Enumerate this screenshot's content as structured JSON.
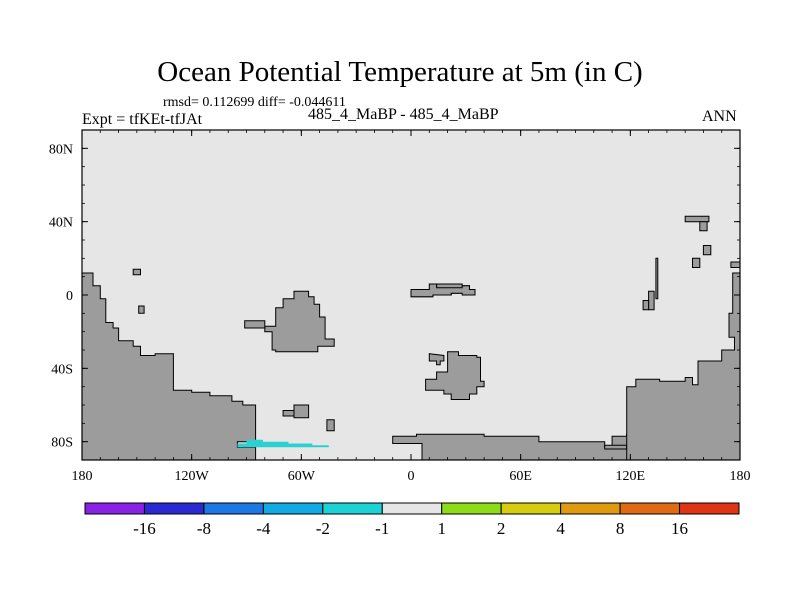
{
  "title": "Ocean Potential Temperature at 5m (in C)",
  "stats": "rmsd= 0.112699 diff= -0.044611",
  "experiment": "Expt = tfKEt-tfJAt",
  "subtitle": "485_4_MaBP - 485_4_MaBP",
  "season": "ANN",
  "map": {
    "projection": "cylindrical-equidistant",
    "lon_range": [
      180,
      540
    ],
    "lat_range": [
      -90,
      90
    ],
    "ocean_color": "#e6e6e6",
    "land_color": "#9c9c9c",
    "x_ticks": [
      {
        "lon": 180,
        "label": "180"
      },
      {
        "lon": 240,
        "label": "120W"
      },
      {
        "lon": 300,
        "label": "60W"
      },
      {
        "lon": 360,
        "label": "0"
      },
      {
        "lon": 420,
        "label": "60E"
      },
      {
        "lon": 480,
        "label": "120E"
      },
      {
        "lon": 540,
        "label": "180"
      }
    ],
    "y_ticks": [
      {
        "lat": 80,
        "label": "80N"
      },
      {
        "lat": 40,
        "label": "40N"
      },
      {
        "lat": 0,
        "label": "0"
      },
      {
        "lat": -40,
        "label": "40S"
      },
      {
        "lat": -80,
        "label": "80S"
      }
    ],
    "land": [
      [
        [
          180,
          12
        ],
        [
          186,
          12
        ],
        [
          186,
          5
        ],
        [
          190,
          5
        ],
        [
          190,
          -2
        ],
        [
          193,
          -2
        ],
        [
          193,
          -15
        ],
        [
          197,
          -15
        ],
        [
          197,
          -18
        ],
        [
          200,
          -18
        ],
        [
          200,
          -25
        ],
        [
          208,
          -25
        ],
        [
          208,
          -28
        ],
        [
          212,
          -28
        ],
        [
          212,
          -33
        ],
        [
          220,
          -33
        ],
        [
          220,
          -32
        ],
        [
          230,
          -32
        ],
        [
          230,
          -52
        ],
        [
          240,
          -52
        ],
        [
          240,
          -53
        ],
        [
          250,
          -53
        ],
        [
          250,
          -55
        ],
        [
          262,
          -55
        ],
        [
          262,
          -58
        ],
        [
          268,
          -58
        ],
        [
          268,
          -60
        ],
        [
          275,
          -60
        ],
        [
          275,
          -80
        ],
        [
          265,
          -80
        ],
        [
          265,
          -83
        ],
        [
          275,
          -83
        ],
        [
          275,
          -90
        ],
        [
          180,
          -90
        ]
      ],
      [
        [
          366,
          -90
        ],
        [
          366,
          -81
        ],
        [
          350,
          -81
        ],
        [
          350,
          -77
        ],
        [
          363,
          -77
        ],
        [
          363,
          -76
        ],
        [
          400,
          -76
        ],
        [
          400,
          -77
        ],
        [
          430,
          -77
        ],
        [
          430,
          -80
        ],
        [
          466,
          -80
        ],
        [
          466,
          -83
        ],
        [
          470,
          -83
        ],
        [
          470,
          -77
        ],
        [
          478,
          -77
        ],
        [
          478,
          -76
        ],
        [
          485,
          -76
        ],
        [
          485,
          -81
        ],
        [
          498,
          -81
        ],
        [
          498,
          -85
        ],
        [
          540,
          -85
        ],
        [
          540,
          -90
        ]
      ],
      [
        [
          466,
          -84
        ],
        [
          466,
          -82
        ],
        [
          478,
          -82
        ],
        [
          478,
          -84
        ]
      ],
      [
        [
          478,
          -80
        ],
        [
          478,
          -50
        ],
        [
          483,
          -50
        ],
        [
          483,
          -46
        ],
        [
          496,
          -46
        ],
        [
          496,
          -47
        ],
        [
          510,
          -47
        ],
        [
          510,
          -45
        ],
        [
          514,
          -45
        ],
        [
          514,
          -49
        ],
        [
          517,
          -49
        ],
        [
          517,
          -36
        ],
        [
          530,
          -36
        ],
        [
          530,
          -30
        ],
        [
          537,
          -30
        ],
        [
          537,
          -23
        ],
        [
          534,
          -23
        ],
        [
          534,
          -10
        ],
        [
          536,
          -10
        ],
        [
          536,
          12
        ],
        [
          540,
          12
        ],
        [
          540,
          -90
        ],
        [
          478,
          -90
        ]
      ],
      [
        [
          535,
          15
        ],
        [
          535,
          18
        ],
        [
          540,
          18
        ],
        [
          540,
          15
        ]
      ],
      [
        [
          510,
          40
        ],
        [
          510,
          43
        ],
        [
          523,
          43
        ],
        [
          523,
          40
        ]
      ],
      [
        [
          518,
          35
        ],
        [
          518,
          40
        ],
        [
          522,
          40
        ],
        [
          522,
          35
        ]
      ],
      [
        [
          520,
          22
        ],
        [
          520,
          27
        ],
        [
          524,
          27
        ],
        [
          524,
          22
        ]
      ],
      [
        [
          514,
          15
        ],
        [
          514,
          20
        ],
        [
          518,
          20
        ],
        [
          518,
          15
        ]
      ],
      [
        [
          494,
          20
        ],
        [
          494,
          -2
        ],
        [
          495,
          -2
        ],
        [
          495,
          20
        ]
      ],
      [
        [
          490,
          2
        ],
        [
          490,
          -8
        ],
        [
          493,
          -8
        ],
        [
          493,
          2
        ]
      ],
      [
        [
          487,
          -3
        ],
        [
          487,
          -8
        ],
        [
          490,
          -8
        ],
        [
          490,
          -3
        ]
      ],
      [
        [
          208,
          14
        ],
        [
          208,
          11
        ],
        [
          212,
          11
        ],
        [
          212,
          14
        ]
      ],
      [
        [
          211,
          -6
        ],
        [
          211,
          -10
        ],
        [
          214,
          -10
        ],
        [
          214,
          -6
        ]
      ],
      [
        [
          296,
          2
        ],
        [
          296,
          -2
        ],
        [
          290,
          -2
        ],
        [
          290,
          -7
        ],
        [
          286,
          -7
        ],
        [
          286,
          -17
        ],
        [
          280,
          -17
        ],
        [
          280,
          -20
        ],
        [
          284,
          -20
        ],
        [
          284,
          -30
        ],
        [
          286,
          -30
        ],
        [
          286,
          -31
        ],
        [
          309,
          -31
        ],
        [
          309,
          -28
        ],
        [
          318,
          -28
        ],
        [
          318,
          -24
        ],
        [
          313,
          -24
        ],
        [
          313,
          -12
        ],
        [
          310,
          -12
        ],
        [
          310,
          -5
        ],
        [
          307,
          -5
        ],
        [
          307,
          -1
        ],
        [
          304,
          -1
        ],
        [
          304,
          2
        ]
      ],
      [
        [
          269,
          -14
        ],
        [
          269,
          -18
        ],
        [
          280,
          -18
        ],
        [
          280,
          -14
        ]
      ],
      [
        [
          296,
          -60
        ],
        [
          296,
          -67
        ],
        [
          304,
          -67
        ],
        [
          304,
          -60
        ]
      ],
      [
        [
          290,
          -63
        ],
        [
          290,
          -66
        ],
        [
          296,
          -66
        ],
        [
          296,
          -63
        ]
      ],
      [
        [
          314,
          -68
        ],
        [
          314,
          -74
        ],
        [
          318,
          -74
        ],
        [
          318,
          -68
        ]
      ],
      [
        [
          360,
          3
        ],
        [
          360,
          -1
        ],
        [
          370,
          -1
        ],
        [
          370,
          2
        ],
        [
          374,
          2
        ],
        [
          374,
          6
        ],
        [
          388,
          6
        ],
        [
          388,
          5
        ],
        [
          392,
          5
        ],
        [
          392,
          3
        ],
        [
          391,
          3
        ],
        [
          391,
          1
        ],
        [
          382,
          1
        ],
        [
          382,
          0
        ],
        [
          372,
          0
        ],
        [
          372,
          -1
        ],
        [
          360,
          -1
        ]
      ],
      [
        [
          374,
          6
        ],
        [
          374,
          4
        ],
        [
          388,
          4
        ],
        [
          388,
          5
        ],
        [
          392,
          5
        ],
        [
          392,
          3
        ],
        [
          395,
          3
        ],
        [
          395,
          0
        ],
        [
          388,
          0
        ],
        [
          388,
          1
        ],
        [
          382,
          1
        ],
        [
          382,
          0
        ],
        [
          372,
          0
        ],
        [
          372,
          -1
        ],
        [
          360,
          -1
        ],
        [
          360,
          3
        ],
        [
          370,
          3
        ],
        [
          370,
          6
        ]
      ],
      [
        [
          370,
          -32
        ],
        [
          370,
          -36
        ],
        [
          374,
          -36
        ],
        [
          374,
          -38
        ],
        [
          376,
          -38
        ],
        [
          376,
          -36
        ],
        [
          378,
          -36
        ],
        [
          378,
          -33
        ]
      ],
      [
        [
          380,
          -33
        ],
        [
          380,
          -42
        ],
        [
          374,
          -42
        ],
        [
          374,
          -46
        ],
        [
          368,
          -46
        ],
        [
          368,
          -52
        ],
        [
          378,
          -52
        ],
        [
          378,
          -54
        ],
        [
          382,
          -54
        ],
        [
          382,
          -57
        ],
        [
          392,
          -57
        ],
        [
          392,
          -54
        ],
        [
          396,
          -54
        ],
        [
          396,
          -50
        ],
        [
          400,
          -50
        ],
        [
          400,
          -47
        ],
        [
          398,
          -47
        ],
        [
          398,
          -34
        ],
        [
          396,
          -34
        ],
        [
          396,
          -33
        ],
        [
          386,
          -33
        ],
        [
          386,
          -31
        ],
        [
          380,
          -31
        ]
      ]
    ],
    "anomaly_patches": [
      {
        "range": "-2..-1",
        "color": "#2ad1d3",
        "points": [
          [
            265,
            -83
          ],
          [
            265,
            -81
          ],
          [
            270,
            -81
          ],
          [
            270,
            -79
          ],
          [
            279,
            -79
          ],
          [
            279,
            -80
          ],
          [
            293,
            -80
          ],
          [
            293,
            -81
          ],
          [
            306,
            -81
          ],
          [
            306,
            -82
          ],
          [
            315,
            -82
          ],
          [
            315,
            -83
          ]
        ]
      }
    ]
  },
  "colorbar": {
    "colors": [
      "#8a22e6",
      "#2a2ad3",
      "#1d78e3",
      "#13a9e2",
      "#1dd2d4",
      "#e6e6e6",
      "#8ddc19",
      "#d6cd10",
      "#e09a0f",
      "#e16912",
      "#e03514"
    ],
    "labels": [
      "-16",
      "-8",
      "-4",
      "-2",
      "-1",
      "1",
      "2",
      "4",
      "8",
      "16"
    ]
  }
}
